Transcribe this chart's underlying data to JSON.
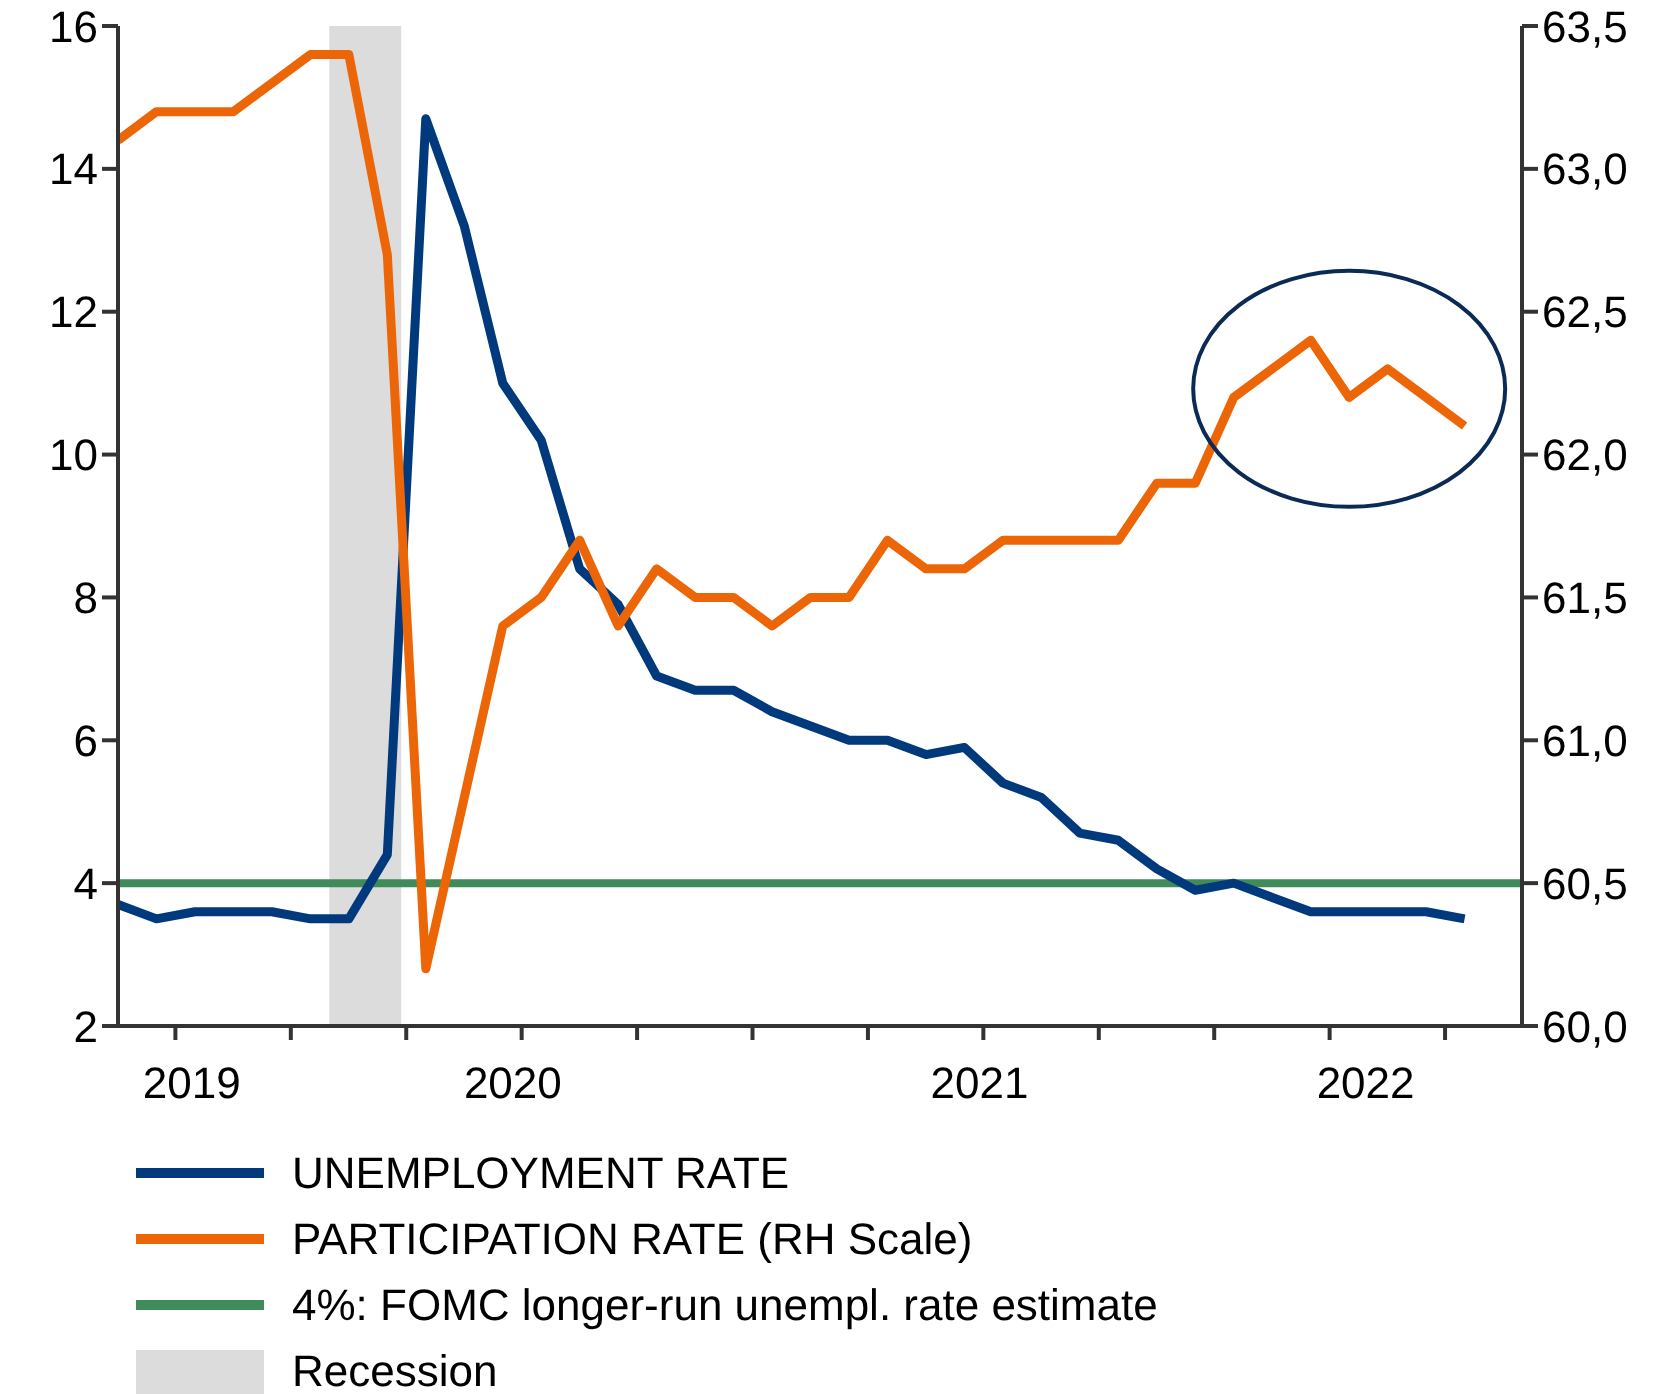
{
  "chart_data": {
    "type": "line",
    "x": [
      "2019-08",
      "2019-09",
      "2019-10",
      "2019-11",
      "2019-12",
      "2020-01",
      "2020-02",
      "2020-03",
      "2020-04",
      "2020-05",
      "2020-06",
      "2020-07",
      "2020-08",
      "2020-09",
      "2020-10",
      "2020-11",
      "2020-12",
      "2021-01",
      "2021-02",
      "2021-03",
      "2021-04",
      "2021-05",
      "2021-06",
      "2021-07",
      "2021-08",
      "2021-09",
      "2021-10",
      "2021-11",
      "2021-12",
      "2022-01",
      "2022-02",
      "2022-03",
      "2022-04",
      "2022-05",
      "2022-06",
      "2022-07"
    ],
    "series": [
      {
        "name": "UNEMPLOYMENT RATE",
        "color": "#003a7d",
        "values": [
          3.7,
          3.5,
          3.6,
          3.6,
          3.6,
          3.5,
          3.5,
          4.4,
          14.7,
          13.2,
          11.0,
          10.2,
          8.4,
          7.9,
          6.9,
          6.7,
          6.7,
          6.4,
          6.2,
          6.0,
          6.0,
          5.8,
          5.9,
          5.4,
          5.2,
          4.7,
          4.6,
          4.2,
          3.9,
          4.0,
          3.8,
          3.6,
          3.6,
          3.6,
          3.6,
          3.5
        ]
      },
      {
        "name": "PARTICIPATION RATE (RH Scale)",
        "color": "#ec6608",
        "axis": "y2",
        "values": [
          63.1,
          63.2,
          63.2,
          63.2,
          63.3,
          63.4,
          63.4,
          62.7,
          60.2,
          60.8,
          61.4,
          61.5,
          61.7,
          61.4,
          61.6,
          61.5,
          61.5,
          61.4,
          61.5,
          61.5,
          61.7,
          61.6,
          61.6,
          61.7,
          61.7,
          61.7,
          61.7,
          61.9,
          61.9,
          62.2,
          62.3,
          62.4,
          62.2,
          62.3,
          62.2,
          62.1
        ]
      }
    ],
    "xlim": [
      "2019-08-01",
      "2022-08-16"
    ],
    "xticks": [
      {
        "value": "2019-09-16",
        "label": null
      },
      {
        "value": "2019-09-29",
        "label": "2019"
      },
      {
        "value": "2019-12-16",
        "label": null
      },
      {
        "value": "2020-03-16",
        "label": null
      },
      {
        "value": "2020-06-09",
        "label": "2020"
      },
      {
        "value": "2020-06-16",
        "label": null
      },
      {
        "value": "2020-09-16",
        "label": null
      },
      {
        "value": "2020-12-16",
        "label": null
      },
      {
        "value": "2021-03-16",
        "label": null
      },
      {
        "value": "2021-06-13",
        "label": "2021"
      },
      {
        "value": "2021-06-16",
        "label": null
      },
      {
        "value": "2021-09-16",
        "label": null
      },
      {
        "value": "2021-12-16",
        "label": null
      },
      {
        "value": "2022-03-16",
        "label": null
      },
      {
        "value": "2022-04-14",
        "label": "2022"
      },
      {
        "value": "2022-06-16",
        "label": null
      }
    ],
    "ylim": [
      2,
      16
    ],
    "yticks": [
      2,
      4,
      6,
      8,
      10,
      12,
      14,
      16
    ],
    "y2lim": [
      60,
      63.5
    ],
    "y2ticks": [
      {
        "value": 60,
        "label": "60,0"
      },
      {
        "value": 60.5,
        "label": "60,5"
      },
      {
        "value": 61,
        "label": "61,0"
      },
      {
        "value": 61.5,
        "label": "61,5"
      },
      {
        "value": 62,
        "label": "62,0"
      },
      {
        "value": 62.5,
        "label": "62,5"
      },
      {
        "value": 63,
        "label": "63,0"
      },
      {
        "value": 63.5,
        "label": "63,5"
      }
    ],
    "ref_lines": [
      {
        "axis": "y",
        "value": 4,
        "label": "4%: FOMC longer-run unempl. rate estimate",
        "color": "#3f8c5a"
      }
    ],
    "bands": [
      {
        "axis": "x",
        "from": "2020-01-16",
        "to": "2020-03-12",
        "label": "Recession",
        "color": "#dcdcdc"
      }
    ],
    "grid": false,
    "legend": "bottom",
    "marker": "none",
    "line_style": "solid"
  }
}
